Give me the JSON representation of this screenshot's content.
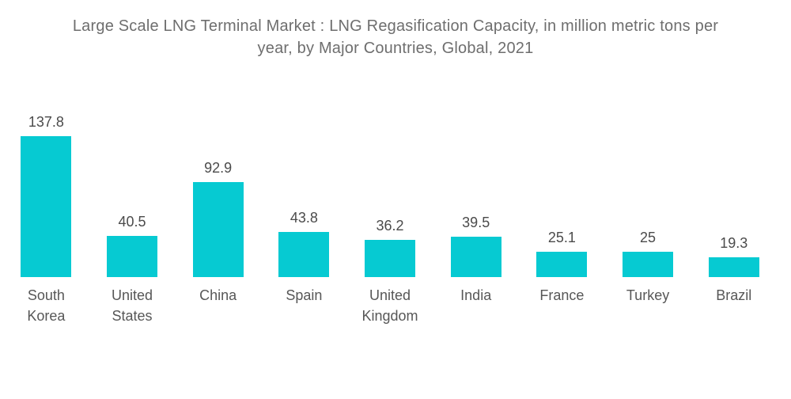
{
  "header": {
    "title": "Large Scale LNG Terminal Market : LNG Regasification Capacity, in million metric tons per year, by Major Countries, Global, 2021",
    "title_lines": [
      "Large Scale LNG Terminal Market : LNG Regasification Capacity, in million metric tons per",
      "year, by Major Countries, Global, 2021"
    ]
  },
  "colors": {
    "bar": "#06CAD2",
    "title_text": "#6E6E6E",
    "value_text": "#4B4B4B",
    "category_text": "#575757",
    "background": "#FFFFFF"
  },
  "chart_data": {
    "type": "bar",
    "title": "Large Scale LNG Terminal Market : LNG Regasification Capacity, in million metric tons per year, by Major Countries, Global, 2021",
    "categories": [
      "South Korea",
      "United States",
      "China",
      "Spain",
      "United Kingdom",
      "India",
      "France",
      "Turkey",
      "Brazil"
    ],
    "categories_display": [
      "South\nKorea",
      "United\nStates",
      "China",
      "Spain",
      "United\nKingdom",
      "India",
      "France",
      "Turkey",
      "Brazil"
    ],
    "values": [
      137.8,
      40.5,
      92.9,
      43.8,
      36.2,
      39.5,
      25.1,
      25,
      19.3
    ],
    "value_labels_position": "above bars",
    "xlabel": "",
    "ylabel": "",
    "unit": "million metric tons per year",
    "ylim": [
      0,
      150
    ],
    "grid": false,
    "legend": false,
    "axes_visible": false
  }
}
